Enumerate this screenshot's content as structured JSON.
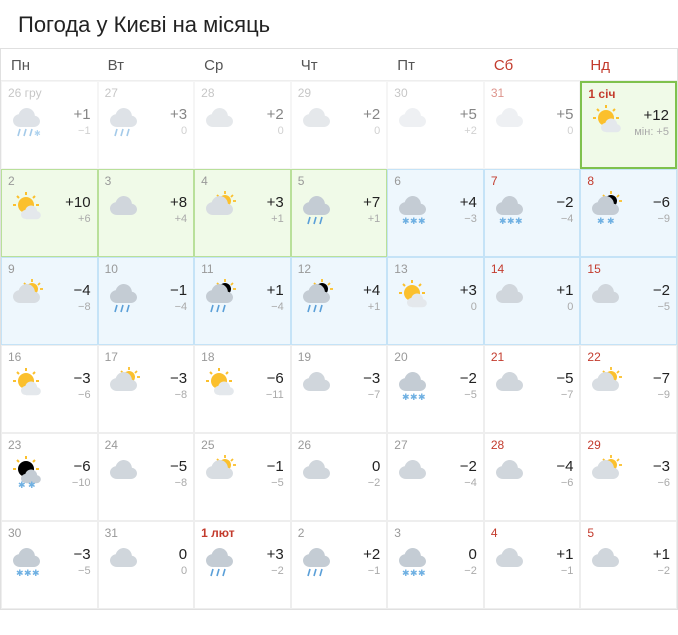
{
  "title": "Погода у Києві на місяць",
  "weekdays": [
    {
      "label": "Пн",
      "wknd": false
    },
    {
      "label": "Вт",
      "wknd": false
    },
    {
      "label": "Ср",
      "wknd": false
    },
    {
      "label": "Чт",
      "wknd": false
    },
    {
      "label": "Пт",
      "wknd": false
    },
    {
      "label": "Сб",
      "wknd": true
    },
    {
      "label": "Нд",
      "wknd": true
    }
  ],
  "days": [
    {
      "label": "26 гру",
      "wknd": false,
      "dim": true,
      "hl": "",
      "icon": "cloud-rainsnow",
      "tmax": "+1",
      "tmin": "−1",
      "minlabel": ""
    },
    {
      "label": "27",
      "wknd": false,
      "dim": true,
      "hl": "",
      "icon": "cloud-rain",
      "tmax": "+3",
      "tmin": "0",
      "minlabel": ""
    },
    {
      "label": "28",
      "wknd": false,
      "dim": true,
      "hl": "",
      "icon": "cloud",
      "tmax": "+2",
      "tmin": "0",
      "minlabel": ""
    },
    {
      "label": "29",
      "wknd": false,
      "dim": true,
      "hl": "",
      "icon": "cloud",
      "tmax": "+2",
      "tmin": "0",
      "minlabel": ""
    },
    {
      "label": "30",
      "wknd": false,
      "dim": true,
      "hl": "",
      "icon": "cloud-dim",
      "tmax": "+5",
      "tmin": "+2",
      "minlabel": ""
    },
    {
      "label": "31",
      "wknd": true,
      "dim": true,
      "hl": "",
      "icon": "cloud-dim",
      "tmax": "+5",
      "tmin": "0",
      "minlabel": ""
    },
    {
      "label": "1 січ",
      "wknd": true,
      "dim": false,
      "hl": "strong",
      "bold": true,
      "icon": "sun-cloud",
      "tmax": "+12",
      "tmin": "+5",
      "minlabel": "мін: "
    },
    {
      "label": "2",
      "wknd": false,
      "dim": false,
      "hl": "green",
      "icon": "sun-cloud",
      "tmax": "+10",
      "tmin": "+6",
      "minlabel": ""
    },
    {
      "label": "3",
      "wknd": false,
      "dim": false,
      "hl": "green",
      "icon": "cloud",
      "tmax": "+8",
      "tmin": "+4",
      "minlabel": ""
    },
    {
      "label": "4",
      "wknd": false,
      "dim": false,
      "hl": "green",
      "icon": "cloud-sun",
      "tmax": "+3",
      "tmin": "+1",
      "minlabel": ""
    },
    {
      "label": "5",
      "wknd": false,
      "dim": false,
      "hl": "green",
      "icon": "cloud-rain",
      "tmax": "+7",
      "tmin": "+1",
      "minlabel": ""
    },
    {
      "label": "6",
      "wknd": false,
      "dim": false,
      "hl": "blue",
      "icon": "cloud-snow",
      "tmax": "+4",
      "tmin": "−3",
      "minlabel": ""
    },
    {
      "label": "7",
      "wknd": true,
      "dim": false,
      "hl": "blue",
      "icon": "cloud-snow",
      "tmax": "−2",
      "tmin": "−4",
      "minlabel": ""
    },
    {
      "label": "8",
      "wknd": true,
      "dim": false,
      "hl": "blue",
      "icon": "cloud-sun-snow",
      "tmax": "−6",
      "tmin": "−9",
      "minlabel": ""
    },
    {
      "label": "9",
      "wknd": false,
      "dim": false,
      "hl": "blue",
      "icon": "cloud-sun",
      "tmax": "−4",
      "tmin": "−8",
      "minlabel": ""
    },
    {
      "label": "10",
      "wknd": false,
      "dim": false,
      "hl": "blue",
      "icon": "cloud-rain",
      "tmax": "−1",
      "tmin": "−4",
      "minlabel": ""
    },
    {
      "label": "11",
      "wknd": false,
      "dim": false,
      "hl": "blue",
      "icon": "cloud-sun-rain",
      "tmax": "+1",
      "tmin": "−4",
      "minlabel": ""
    },
    {
      "label": "12",
      "wknd": false,
      "dim": false,
      "hl": "blue",
      "icon": "cloud-sun-rain",
      "tmax": "+4",
      "tmin": "+1",
      "minlabel": ""
    },
    {
      "label": "13",
      "wknd": false,
      "dim": false,
      "hl": "blue",
      "icon": "sun-cloud",
      "tmax": "+3",
      "tmin": "0",
      "minlabel": ""
    },
    {
      "label": "14",
      "wknd": true,
      "dim": false,
      "hl": "blue",
      "icon": "cloud",
      "tmax": "+1",
      "tmin": "0",
      "minlabel": ""
    },
    {
      "label": "15",
      "wknd": true,
      "dim": false,
      "hl": "blue",
      "icon": "cloud",
      "tmax": "−2",
      "tmin": "−5",
      "minlabel": ""
    },
    {
      "label": "16",
      "wknd": false,
      "dim": false,
      "hl": "",
      "icon": "sun-cloud",
      "tmax": "−3",
      "tmin": "−6",
      "minlabel": ""
    },
    {
      "label": "17",
      "wknd": false,
      "dim": false,
      "hl": "",
      "icon": "cloud-sun",
      "tmax": "−3",
      "tmin": "−8",
      "minlabel": ""
    },
    {
      "label": "18",
      "wknd": false,
      "dim": false,
      "hl": "",
      "icon": "sun-cloud",
      "tmax": "−6",
      "tmin": "−11",
      "minlabel": ""
    },
    {
      "label": "19",
      "wknd": false,
      "dim": false,
      "hl": "",
      "icon": "cloud",
      "tmax": "−3",
      "tmin": "−7",
      "minlabel": ""
    },
    {
      "label": "20",
      "wknd": false,
      "dim": false,
      "hl": "",
      "icon": "cloud-snow",
      "tmax": "−2",
      "tmin": "−5",
      "minlabel": ""
    },
    {
      "label": "21",
      "wknd": true,
      "dim": false,
      "hl": "",
      "icon": "cloud",
      "tmax": "−5",
      "tmin": "−7",
      "minlabel": ""
    },
    {
      "label": "22",
      "wknd": true,
      "dim": false,
      "hl": "",
      "icon": "cloud-sun",
      "tmax": "−7",
      "tmin": "−9",
      "minlabel": ""
    },
    {
      "label": "23",
      "wknd": false,
      "dim": false,
      "hl": "",
      "icon": "sun-cloud-snow",
      "tmax": "−6",
      "tmin": "−10",
      "minlabel": ""
    },
    {
      "label": "24",
      "wknd": false,
      "dim": false,
      "hl": "",
      "icon": "cloud",
      "tmax": "−5",
      "tmin": "−8",
      "minlabel": ""
    },
    {
      "label": "25",
      "wknd": false,
      "dim": false,
      "hl": "",
      "icon": "cloud-sun",
      "tmax": "−1",
      "tmin": "−5",
      "minlabel": ""
    },
    {
      "label": "26",
      "wknd": false,
      "dim": false,
      "hl": "",
      "icon": "cloud",
      "tmax": "0",
      "tmin": "−2",
      "minlabel": ""
    },
    {
      "label": "27",
      "wknd": false,
      "dim": false,
      "hl": "",
      "icon": "cloud",
      "tmax": "−2",
      "tmin": "−4",
      "minlabel": ""
    },
    {
      "label": "28",
      "wknd": true,
      "dim": false,
      "hl": "",
      "icon": "cloud",
      "tmax": "−4",
      "tmin": "−6",
      "minlabel": ""
    },
    {
      "label": "29",
      "wknd": true,
      "dim": false,
      "hl": "",
      "icon": "cloud-sun",
      "tmax": "−3",
      "tmin": "−6",
      "minlabel": ""
    },
    {
      "label": "30",
      "wknd": false,
      "dim": false,
      "hl": "",
      "icon": "cloud-snow",
      "tmax": "−3",
      "tmin": "−5",
      "minlabel": ""
    },
    {
      "label": "31",
      "wknd": false,
      "dim": false,
      "hl": "",
      "icon": "cloud",
      "tmax": "0",
      "tmin": "0",
      "minlabel": ""
    },
    {
      "label": "1 лют",
      "wknd": false,
      "dim": false,
      "hl": "",
      "bold": true,
      "icon": "cloud-rain",
      "tmax": "+3",
      "tmin": "−2",
      "minlabel": ""
    },
    {
      "label": "2",
      "wknd": false,
      "dim": false,
      "hl": "",
      "icon": "cloud-rain",
      "tmax": "+2",
      "tmin": "−1",
      "minlabel": ""
    },
    {
      "label": "3",
      "wknd": false,
      "dim": false,
      "hl": "",
      "icon": "cloud-snow",
      "tmax": "0",
      "tmin": "−2",
      "minlabel": ""
    },
    {
      "label": "4",
      "wknd": true,
      "dim": false,
      "hl": "",
      "icon": "cloud",
      "tmax": "+1",
      "tmin": "−1",
      "minlabel": ""
    },
    {
      "label": "5",
      "wknd": true,
      "dim": false,
      "hl": "",
      "icon": "cloud",
      "tmax": "+1",
      "tmin": "−2",
      "minlabel": ""
    }
  ]
}
